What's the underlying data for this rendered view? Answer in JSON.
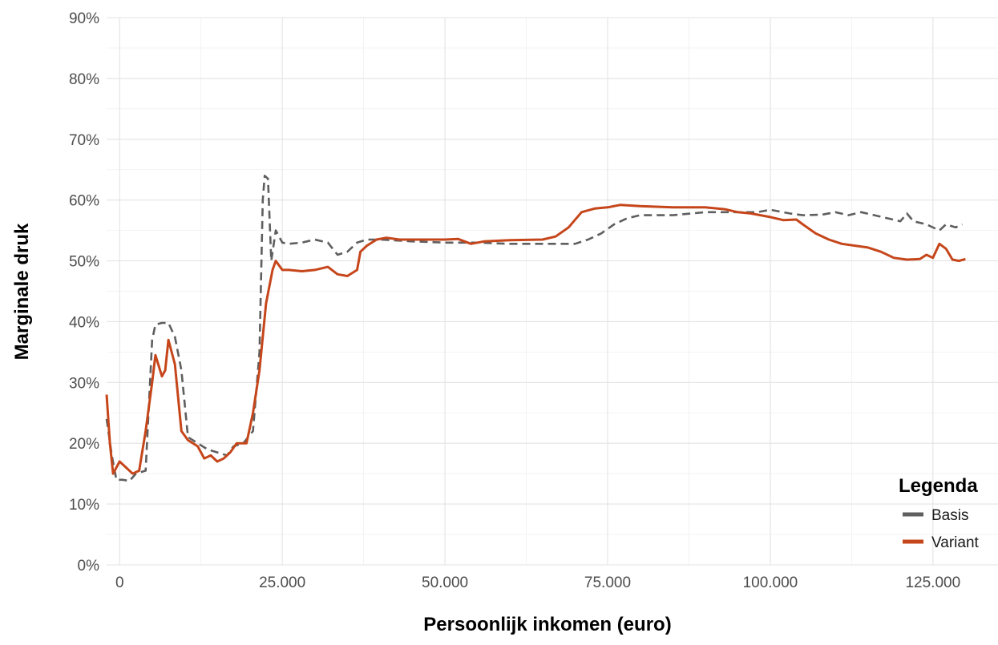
{
  "chart_data": {
    "type": "line",
    "title": "",
    "xlabel": "Persoonlijk inkomen (euro)",
    "ylabel": "Marginale druk",
    "xlim": [
      -2000,
      135000
    ],
    "ylim": [
      0,
      90
    ],
    "x_ticks": [
      0,
      25000,
      50000,
      75000,
      100000,
      125000
    ],
    "x_tick_labels": [
      "0",
      "25.000",
      "50.000",
      "75.000",
      "100.000",
      "125.000"
    ],
    "y_ticks": [
      0,
      10,
      20,
      30,
      40,
      50,
      60,
      70,
      80,
      90
    ],
    "y_tick_labels": [
      "0%",
      "10%",
      "20%",
      "30%",
      "40%",
      "50%",
      "60%",
      "70%",
      "80%",
      "90%"
    ],
    "grid": true,
    "legend": {
      "title": "Legenda",
      "placement": "bottom-right"
    },
    "series": [
      {
        "name": "Basis",
        "color": "#5f5f5f",
        "dash": "dashed",
        "points": [
          [
            -2000,
            24
          ],
          [
            -1200,
            18
          ],
          [
            -500,
            14
          ],
          [
            500,
            14
          ],
          [
            1500,
            13.8
          ],
          [
            2500,
            15
          ],
          [
            4000,
            15.5
          ],
          [
            5000,
            37
          ],
          [
            5500,
            39.5
          ],
          [
            6500,
            39.8
          ],
          [
            7500,
            39.8
          ],
          [
            8500,
            37.5
          ],
          [
            9500,
            32
          ],
          [
            10500,
            21
          ],
          [
            12000,
            20
          ],
          [
            13500,
            19
          ],
          [
            15000,
            18.5
          ],
          [
            16500,
            18
          ],
          [
            17500,
            19.5
          ],
          [
            19000,
            20
          ],
          [
            20500,
            22
          ],
          [
            21500,
            35
          ],
          [
            22000,
            60
          ],
          [
            22300,
            64
          ],
          [
            22800,
            63.5
          ],
          [
            23300,
            50
          ],
          [
            24000,
            55
          ],
          [
            25000,
            53
          ],
          [
            26000,
            52.8
          ],
          [
            28000,
            53
          ],
          [
            30000,
            53.5
          ],
          [
            32000,
            53
          ],
          [
            33500,
            51
          ],
          [
            35000,
            51.5
          ],
          [
            36500,
            53
          ],
          [
            38000,
            53.5
          ],
          [
            40000,
            53.5
          ],
          [
            42000,
            53.4
          ],
          [
            45000,
            53.2
          ],
          [
            50000,
            53
          ],
          [
            55000,
            53
          ],
          [
            60000,
            52.8
          ],
          [
            65000,
            52.8
          ],
          [
            70000,
            52.8
          ],
          [
            72000,
            53.5
          ],
          [
            74000,
            54.5
          ],
          [
            76000,
            56
          ],
          [
            78000,
            57
          ],
          [
            80000,
            57.5
          ],
          [
            85000,
            57.5
          ],
          [
            90000,
            58
          ],
          [
            95000,
            58
          ],
          [
            98000,
            58
          ],
          [
            100000,
            58.4
          ],
          [
            103000,
            57.8
          ],
          [
            105000,
            57.5
          ],
          [
            108000,
            57.6
          ],
          [
            110000,
            58
          ],
          [
            112000,
            57.5
          ],
          [
            114000,
            58
          ],
          [
            116000,
            57.5
          ],
          [
            118000,
            57
          ],
          [
            120000,
            56.5
          ],
          [
            121000,
            57.8
          ],
          [
            122000,
            56.5
          ],
          [
            124000,
            56
          ],
          [
            126000,
            55
          ],
          [
            127000,
            56
          ],
          [
            128500,
            55.5
          ],
          [
            129500,
            56
          ]
        ]
      },
      {
        "name": "Variant",
        "color": "#c6461b",
        "dash": "solid",
        "points": [
          [
            -2000,
            28
          ],
          [
            -1500,
            20
          ],
          [
            -1000,
            15
          ],
          [
            0,
            17
          ],
          [
            1000,
            16
          ],
          [
            2000,
            15
          ],
          [
            3000,
            15.5
          ],
          [
            4000,
            22
          ],
          [
            5000,
            30
          ],
          [
            5500,
            34.5
          ],
          [
            6500,
            31
          ],
          [
            7000,
            32
          ],
          [
            7500,
            37
          ],
          [
            8500,
            33
          ],
          [
            9500,
            22
          ],
          [
            10500,
            20.5
          ],
          [
            12000,
            19.5
          ],
          [
            13000,
            17.5
          ],
          [
            14000,
            18
          ],
          [
            15000,
            17
          ],
          [
            16000,
            17.5
          ],
          [
            17000,
            18.5
          ],
          [
            18000,
            20
          ],
          [
            19500,
            20
          ],
          [
            20500,
            25
          ],
          [
            21500,
            32
          ],
          [
            22500,
            43
          ],
          [
            23500,
            48.5
          ],
          [
            24000,
            50
          ],
          [
            25000,
            48.5
          ],
          [
            26000,
            48.5
          ],
          [
            28000,
            48.3
          ],
          [
            30000,
            48.5
          ],
          [
            32000,
            49
          ],
          [
            33500,
            47.8
          ],
          [
            35000,
            47.5
          ],
          [
            36500,
            48.5
          ],
          [
            37000,
            51.5
          ],
          [
            38000,
            52.5
          ],
          [
            39500,
            53.5
          ],
          [
            41000,
            53.8
          ],
          [
            43000,
            53.5
          ],
          [
            45000,
            53.5
          ],
          [
            50000,
            53.5
          ],
          [
            52000,
            53.6
          ],
          [
            54000,
            52.8
          ],
          [
            56000,
            53.2
          ],
          [
            60000,
            53.4
          ],
          [
            65000,
            53.5
          ],
          [
            67000,
            54
          ],
          [
            69000,
            55.5
          ],
          [
            71000,
            58
          ],
          [
            73000,
            58.6
          ],
          [
            75000,
            58.8
          ],
          [
            77000,
            59.2
          ],
          [
            80000,
            59
          ],
          [
            85000,
            58.8
          ],
          [
            90000,
            58.8
          ],
          [
            93000,
            58.5
          ],
          [
            95000,
            58
          ],
          [
            97000,
            57.8
          ],
          [
            100000,
            57.2
          ],
          [
            102000,
            56.7
          ],
          [
            104000,
            56.8
          ],
          [
            105000,
            56
          ],
          [
            107000,
            54.5
          ],
          [
            109000,
            53.5
          ],
          [
            111000,
            52.8
          ],
          [
            113000,
            52.5
          ],
          [
            115000,
            52.2
          ],
          [
            117000,
            51.5
          ],
          [
            119000,
            50.5
          ],
          [
            121000,
            50.2
          ],
          [
            123000,
            50.3
          ],
          [
            124000,
            51
          ],
          [
            125000,
            50.5
          ],
          [
            126000,
            52.8
          ],
          [
            127000,
            52
          ],
          [
            128000,
            50.2
          ],
          [
            129000,
            50
          ],
          [
            130000,
            50.3
          ]
        ]
      }
    ]
  }
}
